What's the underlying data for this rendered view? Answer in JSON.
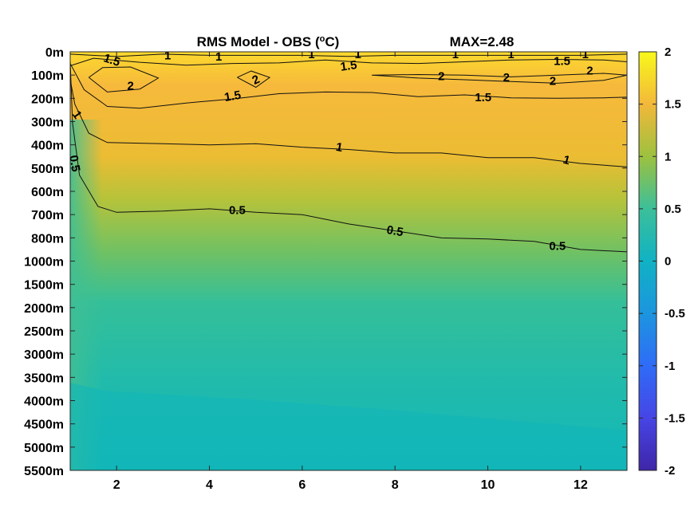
{
  "chart_data": {
    "type": "heatmap",
    "title": "RMS Model - OBS (",
    "title_unit": "C)",
    "title_superscript": "o",
    "max_annotation": "MAX=2.48",
    "xlabel": "",
    "ylabel": "",
    "xlim": [
      1,
      13
    ],
    "x_ticks": [
      2,
      4,
      6,
      8,
      10,
      12
    ],
    "y_tick_labels": [
      "0m",
      "100m",
      "200m",
      "300m",
      "400m",
      "500m",
      "600m",
      "700m",
      "800m",
      "1000m",
      "1500m",
      "2000m",
      "2500m",
      "3000m",
      "3500m",
      "4000m",
      "4500m",
      "5000m",
      "5500m"
    ],
    "colormap": "parula",
    "clim": [
      -2,
      2
    ],
    "colorbar_ticks": [
      "2",
      "1.5",
      "1",
      "0.5",
      "0",
      "-0.5",
      "-1",
      "-1.5",
      "-2"
    ],
    "contour_levels": [
      0.5,
      1,
      1.5,
      2
    ],
    "contours": [
      {
        "level": 0.5,
        "depth_index": [
          [
            1.0,
            0.4
          ],
          [
            1.05,
            3.0
          ],
          [
            1.2,
            5.3
          ],
          [
            1.6,
            6.6
          ],
          [
            2.0,
            6.9
          ],
          [
            3.0,
            6.8
          ],
          [
            4.0,
            6.75
          ],
          [
            5.0,
            6.85
          ],
          [
            6.0,
            7.0
          ],
          [
            7.0,
            7.35
          ],
          [
            8.0,
            7.7
          ],
          [
            9.0,
            7.95
          ],
          [
            10.0,
            8.05
          ],
          [
            11.0,
            8.1
          ],
          [
            12.0,
            8.5
          ],
          [
            13.0,
            8.55
          ]
        ]
      },
      {
        "level": 1,
        "depth_index": [
          [
            1.0,
            1.2
          ],
          [
            1.1,
            2.2
          ],
          [
            1.4,
            3.5
          ],
          [
            1.8,
            3.85
          ],
          [
            3.0,
            3.95
          ],
          [
            4.0,
            3.95
          ],
          [
            5.0,
            3.95
          ],
          [
            6.0,
            4.05
          ],
          [
            7.0,
            4.2
          ],
          [
            8.0,
            4.3
          ],
          [
            9.0,
            4.35
          ],
          [
            10.0,
            4.5
          ],
          [
            11.0,
            4.55
          ],
          [
            12.0,
            4.75
          ],
          [
            13.0,
            4.95
          ]
        ]
      },
      {
        "level": 1,
        "depth_index": [
          [
            1.0,
            0.1
          ],
          [
            2.0,
            0.15
          ],
          [
            3.0,
            0.1
          ],
          [
            4.0,
            0.1
          ],
          [
            5.0,
            0.15
          ],
          [
            6.0,
            0.1
          ],
          [
            7.0,
            0.2
          ],
          [
            8.0,
            0.1
          ],
          [
            9.0,
            0.15
          ],
          [
            10.0,
            0.1
          ],
          [
            11.0,
            0.15
          ],
          [
            12.0,
            0.1
          ],
          [
            13.0,
            0.1
          ]
        ]
      },
      {
        "level": 1.5,
        "depth_index": [
          [
            1.0,
            0.5
          ],
          [
            1.3,
            1.6
          ],
          [
            1.8,
            2.35
          ],
          [
            2.5,
            2.4
          ],
          [
            3.5,
            2.2
          ],
          [
            4.5,
            2.0
          ],
          [
            5.5,
            1.8
          ],
          [
            6.5,
            1.7
          ],
          [
            7.5,
            1.75
          ],
          [
            8.5,
            1.9
          ],
          [
            9.5,
            1.85
          ],
          [
            10.5,
            1.95
          ],
          [
            11.5,
            2.0
          ],
          [
            12.5,
            1.95
          ],
          [
            13.0,
            1.95
          ]
        ]
      },
      {
        "level": 1.5,
        "depth_index": [
          [
            1.0,
            0.6
          ],
          [
            1.5,
            0.25
          ],
          [
            2.5,
            0.45
          ],
          [
            3.5,
            0.55
          ],
          [
            4.5,
            0.5
          ],
          [
            5.5,
            0.45
          ],
          [
            6.5,
            0.35
          ],
          [
            7.5,
            0.45
          ],
          [
            8.5,
            0.5
          ],
          [
            9.5,
            0.4
          ],
          [
            10.5,
            0.35
          ],
          [
            11.5,
            0.3
          ],
          [
            12.5,
            0.35
          ],
          [
            13.0,
            0.4
          ]
        ]
      },
      {
        "level": 2,
        "depth_index": [
          [
            1.4,
            1.1
          ],
          [
            1.7,
            0.65
          ],
          [
            2.3,
            0.65
          ],
          [
            2.9,
            1.1
          ],
          [
            2.5,
            1.6
          ],
          [
            1.8,
            1.7
          ],
          [
            1.4,
            1.1
          ]
        ]
      },
      {
        "level": 2,
        "depth_index": [
          [
            4.6,
            1.1
          ],
          [
            4.9,
            0.8
          ],
          [
            5.3,
            1.1
          ],
          [
            5.0,
            1.5
          ],
          [
            4.6,
            1.1
          ]
        ]
      },
      {
        "level": 2,
        "depth_index": [
          [
            7.5,
            1.0
          ],
          [
            8.5,
            0.95
          ],
          [
            9.5,
            1.0
          ],
          [
            10.5,
            1.05
          ],
          [
            11.5,
            1.0
          ],
          [
            12.5,
            0.9
          ],
          [
            13.0,
            1.0
          ],
          [
            12.5,
            1.2
          ],
          [
            11.5,
            1.35
          ],
          [
            10.5,
            1.25
          ],
          [
            9.5,
            1.2
          ],
          [
            8.5,
            1.1
          ],
          [
            7.5,
            1.0
          ]
        ]
      }
    ],
    "contour_labels": [
      {
        "text": "1.5",
        "x": 1.9,
        "depth_index": 0.35,
        "angle": 18
      },
      {
        "text": "1",
        "x": 3.1,
        "depth_index": 0.15
      },
      {
        "text": "1",
        "x": 4.2,
        "depth_index": 0.2
      },
      {
        "text": "1",
        "x": 6.2,
        "depth_index": 0.1
      },
      {
        "text": "1",
        "x": 7.2,
        "depth_index": 0.1
      },
      {
        "text": "1",
        "x": 9.3,
        "depth_index": 0.1
      },
      {
        "text": "1",
        "x": 10.5,
        "depth_index": 0.1
      },
      {
        "text": "1",
        "x": 12.1,
        "depth_index": 0.1
      },
      {
        "text": "1.5",
        "x": 7.0,
        "depth_index": 0.6,
        "angle": -8
      },
      {
        "text": "1.5",
        "x": 11.6,
        "depth_index": 0.4
      },
      {
        "text": "2",
        "x": 2.3,
        "depth_index": 1.45
      },
      {
        "text": "2",
        "x": 5.0,
        "depth_index": 1.2,
        "angle": -25
      },
      {
        "text": "2",
        "x": 9.0,
        "depth_index": 1.05
      },
      {
        "text": "2",
        "x": 10.4,
        "depth_index": 1.1
      },
      {
        "text": "2",
        "x": 11.4,
        "depth_index": 1.25
      },
      {
        "text": "2",
        "x": 12.2,
        "depth_index": 0.8
      },
      {
        "text": "1.5",
        "x": 4.5,
        "depth_index": 1.9,
        "angle": -10
      },
      {
        "text": "1.5",
        "x": 9.9,
        "depth_index": 1.95
      },
      {
        "text": "1",
        "x": 1.15,
        "depth_index": 2.7,
        "angle": 55
      },
      {
        "text": "1",
        "x": 6.8,
        "depth_index": 4.1,
        "angle": 10
      },
      {
        "text": "1",
        "x": 11.7,
        "depth_index": 4.65,
        "angle": 15
      },
      {
        "text": "0.5",
        "x": 1.1,
        "depth_index": 4.8,
        "angle": 80
      },
      {
        "text": "0.5",
        "x": 4.6,
        "depth_index": 6.8
      },
      {
        "text": "0.5",
        "x": 8.0,
        "depth_index": 7.7,
        "angle": 10
      },
      {
        "text": "0.5",
        "x": 11.5,
        "depth_index": 8.35
      }
    ]
  }
}
